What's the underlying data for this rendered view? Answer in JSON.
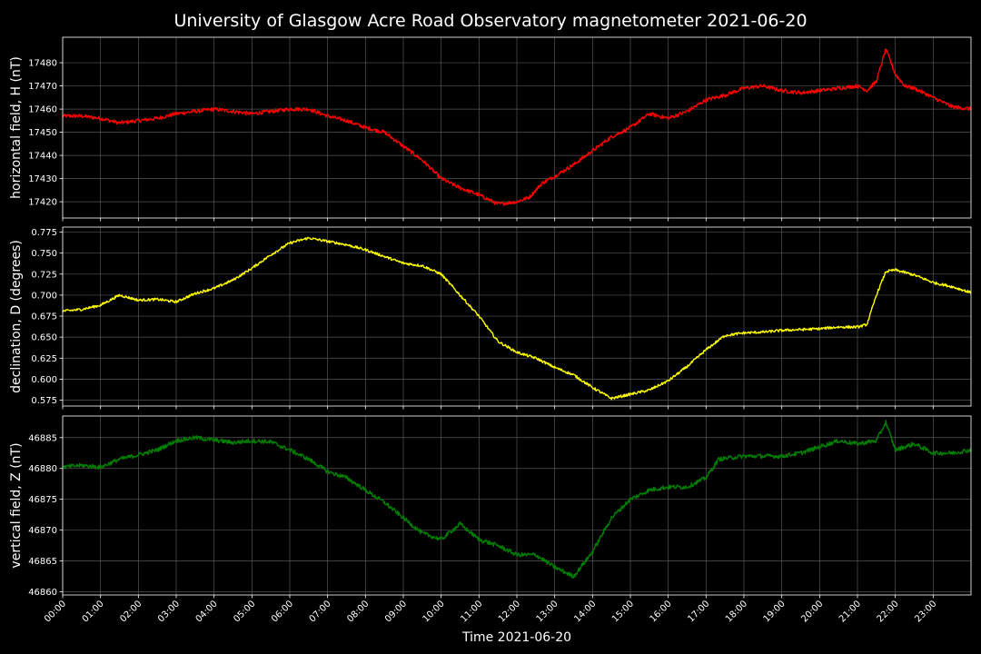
{
  "chart_data": {
    "type": "line",
    "title": "University of Glasgow Acre Road Observatory magnetometer 2021-06-20",
    "xlabel": "Time 2021-06-20",
    "x_tick_labels": [
      "00:00",
      "01:00",
      "02:00",
      "03:00",
      "04:00",
      "05:00",
      "06:00",
      "07:00",
      "08:00",
      "09:00",
      "10:00",
      "11:00",
      "12:00",
      "13:00",
      "14:00",
      "15:00",
      "16:00",
      "17:00",
      "18:00",
      "19:00",
      "20:00",
      "21:00",
      "22:00",
      "23:00"
    ],
    "xlim_hours": [
      0,
      24
    ],
    "grid": true,
    "background": "#000000",
    "grid_color": "#555555",
    "panels": [
      {
        "ylabel": "horizontal field, H (nT)",
        "color": "#ff0000",
        "ylim": [
          17413,
          17491
        ],
        "yticks": [
          17420,
          17430,
          17440,
          17450,
          17460,
          17470,
          17480
        ],
        "tick_format": 0,
        "noise": 0.8,
        "x": [
          "00:00",
          "00:30",
          "01:00",
          "01:30",
          "02:00",
          "02:30",
          "03:00",
          "03:30",
          "04:00",
          "04:30",
          "05:00",
          "05:30",
          "06:00",
          "06:30",
          "07:00",
          "07:30",
          "08:00",
          "08:30",
          "09:00",
          "09:30",
          "10:00",
          "10:30",
          "11:00",
          "11:30",
          "12:00",
          "12:20",
          "12:40",
          "13:00",
          "13:30",
          "14:00",
          "14:30",
          "15:00",
          "15:30",
          "16:00",
          "16:30",
          "17:00",
          "17:30",
          "18:00",
          "18:30",
          "19:00",
          "19:30",
          "20:00",
          "20:30",
          "21:00",
          "21:15",
          "21:30",
          "21:45",
          "22:00",
          "22:15",
          "22:30",
          "23:00",
          "23:30",
          "24:00"
        ],
        "values": [
          17457,
          17457,
          17456,
          17454,
          17455,
          17456,
          17458,
          17459,
          17460,
          17459,
          17458,
          17459,
          17460,
          17460,
          17457,
          17455,
          17452,
          17450,
          17444,
          17438,
          17430,
          17426,
          17423,
          17419,
          17420,
          17422,
          17428,
          17431,
          17436,
          17442,
          17448,
          17452,
          17458,
          17456,
          17459,
          17464,
          17466,
          17469,
          17470,
          17468,
          17467,
          17468,
          17469,
          17470,
          17468,
          17472,
          17486,
          17475,
          17470,
          17469,
          17465,
          17461,
          17460
        ]
      },
      {
        "ylabel": "declination, D (degrees)",
        "color": "#ffff00",
        "ylim": [
          0.568,
          0.781
        ],
        "yticks": [
          0.575,
          0.6,
          0.625,
          0.65,
          0.675,
          0.7,
          0.725,
          0.75,
          0.775
        ],
        "tick_format": 3,
        "noise": 0.0015,
        "x": [
          "00:00",
          "00:30",
          "01:00",
          "01:30",
          "02:00",
          "02:30",
          "03:00",
          "03:30",
          "04:00",
          "04:30",
          "05:00",
          "05:30",
          "06:00",
          "06:30",
          "07:00",
          "07:30",
          "08:00",
          "08:30",
          "09:00",
          "09:30",
          "10:00",
          "10:30",
          "11:00",
          "11:30",
          "12:00",
          "12:30",
          "13:00",
          "13:30",
          "14:00",
          "14:30",
          "15:00",
          "15:30",
          "16:00",
          "16:30",
          "17:00",
          "17:30",
          "18:00",
          "18:30",
          "19:00",
          "19:30",
          "20:00",
          "20:30",
          "21:00",
          "21:15",
          "21:30",
          "21:45",
          "22:00",
          "22:30",
          "23:00",
          "23:30",
          "24:00"
        ],
        "values": [
          0.681,
          0.683,
          0.688,
          0.7,
          0.694,
          0.695,
          0.692,
          0.702,
          0.708,
          0.718,
          0.732,
          0.748,
          0.762,
          0.768,
          0.764,
          0.76,
          0.754,
          0.746,
          0.738,
          0.735,
          0.725,
          0.7,
          0.675,
          0.645,
          0.632,
          0.625,
          0.614,
          0.605,
          0.59,
          0.577,
          0.582,
          0.587,
          0.598,
          0.615,
          0.635,
          0.652,
          0.655,
          0.656,
          0.658,
          0.659,
          0.66,
          0.662,
          0.662,
          0.665,
          0.7,
          0.728,
          0.73,
          0.724,
          0.715,
          0.71,
          0.703
        ]
      },
      {
        "ylabel": "vertical field, Z (nT)",
        "color": "#008000",
        "ylim": [
          46859.5,
          46888.5
        ],
        "yticks": [
          46860,
          46865,
          46870,
          46875,
          46880,
          46885
        ],
        "tick_format": 0,
        "noise": 0.35,
        "x": [
          "00:00",
          "00:30",
          "01:00",
          "01:30",
          "02:00",
          "02:30",
          "03:00",
          "03:30",
          "04:00",
          "04:30",
          "05:00",
          "05:30",
          "06:00",
          "06:30",
          "07:00",
          "07:30",
          "08:00",
          "08:30",
          "09:00",
          "09:30",
          "10:00",
          "10:30",
          "11:00",
          "11:30",
          "12:00",
          "12:30",
          "13:00",
          "13:30",
          "14:00",
          "14:30",
          "15:00",
          "15:30",
          "16:00",
          "16:30",
          "17:00",
          "17:20",
          "18:00",
          "18:30",
          "19:00",
          "19:30",
          "20:00",
          "20:30",
          "21:00",
          "21:30",
          "21:45",
          "22:00",
          "22:30",
          "23:00",
          "23:30",
          "24:00"
        ],
        "values": [
          46880.2,
          46880.5,
          46880.2,
          46881.5,
          46882.2,
          46883.0,
          46884.5,
          46885.0,
          46884.6,
          46884.2,
          46884.5,
          46884.3,
          46883.0,
          46881.5,
          46879.5,
          46878.5,
          46876.5,
          46874.5,
          46872.0,
          46869.5,
          46868.5,
          46871.0,
          46868.5,
          46867.5,
          46866.0,
          46866.0,
          46864.0,
          46862.5,
          46866.5,
          46872.0,
          46875.0,
          46876.5,
          46877.0,
          46877.0,
          46878.5,
          46881.5,
          46882.0,
          46882.0,
          46882.0,
          46882.5,
          46883.5,
          46884.5,
          46884.0,
          46884.5,
          46887.5,
          46883.0,
          46884.0,
          46882.5,
          46882.5,
          46883.0
        ]
      }
    ]
  }
}
